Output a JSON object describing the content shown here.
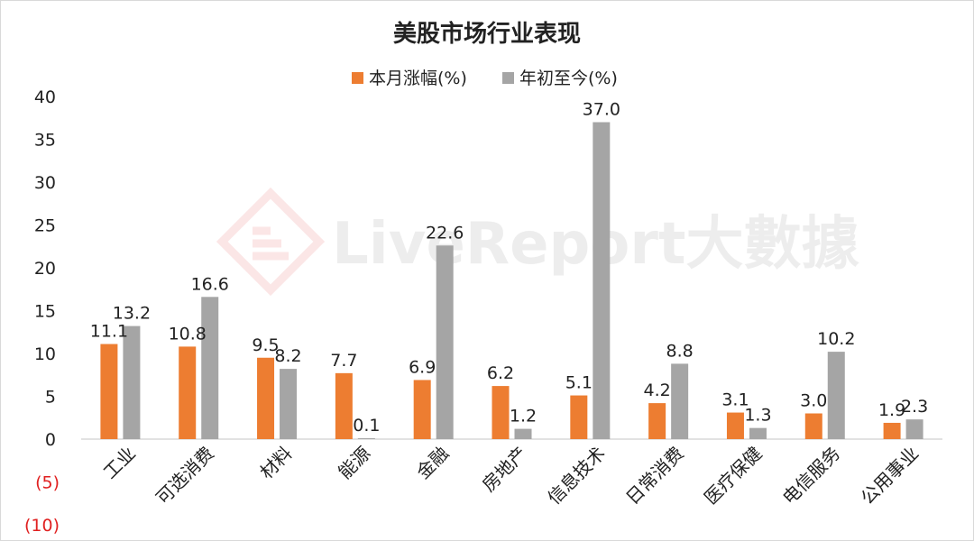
{
  "chart_data": {
    "type": "bar",
    "title": "美股市场行业表现",
    "categories": [
      "工业",
      "可选消费",
      "材料",
      "能源",
      "金融",
      "房地产",
      "信息技术",
      "日常消费",
      "医疗保健",
      "电信服务",
      "公用事业"
    ],
    "series": [
      {
        "name": "本月涨幅(%)",
        "color": "#ed7d31",
        "values": [
          11.1,
          10.8,
          9.5,
          7.7,
          6.9,
          6.2,
          5.1,
          4.2,
          3.1,
          3.0,
          1.9
        ]
      },
      {
        "name": "年初至今(%)",
        "color": "#a5a5a5",
        "values": [
          13.2,
          16.6,
          8.2,
          0.1,
          22.6,
          1.2,
          37.0,
          8.8,
          1.3,
          10.2,
          2.3
        ]
      }
    ],
    "y_ticks": [
      "(10)",
      "(5)",
      "0",
      "5",
      "10",
      "15",
      "20",
      "25",
      "30",
      "35",
      "40"
    ],
    "negative_tick_color": "#e02020",
    "ylim": [
      -10,
      40
    ],
    "grid": false,
    "legend_position": "top-center",
    "watermark": "LiveReport大數據"
  }
}
